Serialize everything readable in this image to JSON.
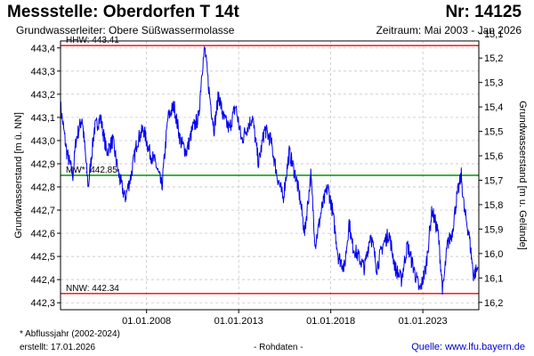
{
  "header": {
    "title": "Messstelle: Oberdorfen T 14t",
    "number": "Nr: 14125",
    "aquifer": "Grundwasserleiter:   Obere Süßwassermolasse",
    "period": "Zeitraum: Mai 2003 - Jan 2026"
  },
  "footer": {
    "footnote": "* Abflussjahr (2002-2024)",
    "created": "erstellt:  17.01.2026",
    "rawdata": "- Rohdaten -",
    "source": "Quelle: www.lfu.bayern.de"
  },
  "colors": {
    "series": "#0000ee",
    "hhw": "#ff0000",
    "nnw": "#ff0000",
    "mw": "#009900",
    "grid": "#bbbbbb",
    "source_link": "#0000cc"
  },
  "chart_data": {
    "type": "line",
    "xlabel": "",
    "ylabel": "Grundwasserstand [m ü. NN]",
    "ylabel_right": "Grundwasserstand [m u. Gelände]",
    "xlim": [
      "2003-05-01",
      "2026-01-15"
    ],
    "ylim": [
      442.27,
      443.43
    ],
    "ylim_right": [
      15.13,
      16.23
    ],
    "grid": true,
    "y_ticks": [
      "442,3",
      "442,4",
      "442,5",
      "442,6",
      "442,7",
      "442,8",
      "442,9",
      "443,0",
      "443,1",
      "443,2",
      "443,3",
      "443,4"
    ],
    "y_tick_values": [
      442.3,
      442.4,
      442.5,
      442.6,
      442.7,
      442.8,
      442.9,
      443.0,
      443.1,
      443.2,
      443.3,
      443.4
    ],
    "y_ticks_right": [
      "15,1",
      "15,2",
      "15,3",
      "15,4",
      "15,5",
      "15,6",
      "15,7",
      "15,8",
      "15,9",
      "16,0",
      "16,1",
      "16,2"
    ],
    "y_tick_values_right": [
      15.1,
      15.2,
      15.3,
      15.4,
      15.5,
      15.6,
      15.7,
      15.8,
      15.9,
      16.0,
      16.1,
      16.2
    ],
    "x_ticks": [
      "01.01.2008",
      "01.01.2013",
      "01.01.2018",
      "01.01.2023"
    ],
    "x_tick_values": [
      "2008-01-01",
      "2013-01-01",
      "2018-01-01",
      "2023-01-01"
    ],
    "reference_lines": [
      {
        "label": "HHW: 443.41",
        "value": 443.41,
        "color": "#ff0000"
      },
      {
        "label": "MW*: 442.85",
        "value": 442.85,
        "color": "#009900"
      },
      {
        "label": "NNW: 442.34",
        "value": 442.34,
        "color": "#ff0000"
      }
    ],
    "series": [
      {
        "color": "#0000ee",
        "x": [
          "2003-05-01",
          "2003-09-01",
          "2004-01-01",
          "2004-03-01",
          "2004-07-01",
          "2004-11-01",
          "2005-03-01",
          "2005-07-01",
          "2005-11-01",
          "2006-03-01",
          "2006-07-01",
          "2006-11-01",
          "2007-03-01",
          "2007-07-01",
          "2007-11-01",
          "2008-03-01",
          "2008-07-01",
          "2008-11-01",
          "2009-03-01",
          "2009-07-01",
          "2009-11-01",
          "2010-03-01",
          "2010-07-01",
          "2010-11-01",
          "2011-01-01",
          "2011-03-01",
          "2011-06-01",
          "2011-09-01",
          "2011-12-01",
          "2012-03-01",
          "2012-07-01",
          "2012-11-01",
          "2013-03-01",
          "2013-06-01",
          "2013-10-01",
          "2014-02-01",
          "2014-06-01",
          "2014-10-01",
          "2015-02-01",
          "2015-06-01",
          "2015-10-01",
          "2016-02-01",
          "2016-05-01",
          "2016-08-01",
          "2016-12-01",
          "2017-03-01",
          "2017-07-01",
          "2017-11-01",
          "2018-02-01",
          "2018-06-01",
          "2018-10-01",
          "2019-01-01",
          "2019-03-01",
          "2019-07-01",
          "2019-11-01",
          "2020-03-01",
          "2020-07-01",
          "2020-11-01",
          "2021-03-01",
          "2021-07-01",
          "2021-11-01",
          "2022-03-01",
          "2022-07-01",
          "2022-11-01",
          "2023-03-01",
          "2023-07-01",
          "2023-11-01",
          "2024-02-01",
          "2024-05-01",
          "2024-08-01",
          "2024-11-01",
          "2025-02-01",
          "2025-04-01",
          "2025-07-01",
          "2025-10-01",
          "2026-01-01"
        ],
        "y": [
          443.15,
          442.95,
          442.85,
          443.0,
          443.1,
          442.8,
          443.05,
          443.1,
          442.95,
          443.0,
          442.85,
          442.75,
          442.85,
          443.0,
          443.05,
          442.95,
          442.9,
          442.8,
          443.1,
          443.15,
          443.0,
          442.95,
          443.05,
          443.1,
          443.3,
          443.4,
          443.2,
          443.05,
          443.2,
          443.1,
          443.05,
          443.15,
          443.0,
          443.05,
          443.1,
          442.9,
          443.05,
          443.0,
          442.85,
          442.75,
          442.95,
          442.85,
          442.75,
          442.6,
          442.85,
          442.55,
          442.7,
          442.8,
          442.7,
          442.5,
          442.45,
          442.65,
          442.55,
          442.5,
          442.45,
          442.6,
          442.45,
          442.55,
          442.6,
          442.45,
          442.4,
          442.55,
          442.45,
          442.35,
          442.45,
          442.7,
          442.6,
          442.35,
          442.55,
          442.6,
          442.75,
          442.85,
          442.7,
          442.6,
          442.42,
          442.45
        ]
      }
    ]
  }
}
